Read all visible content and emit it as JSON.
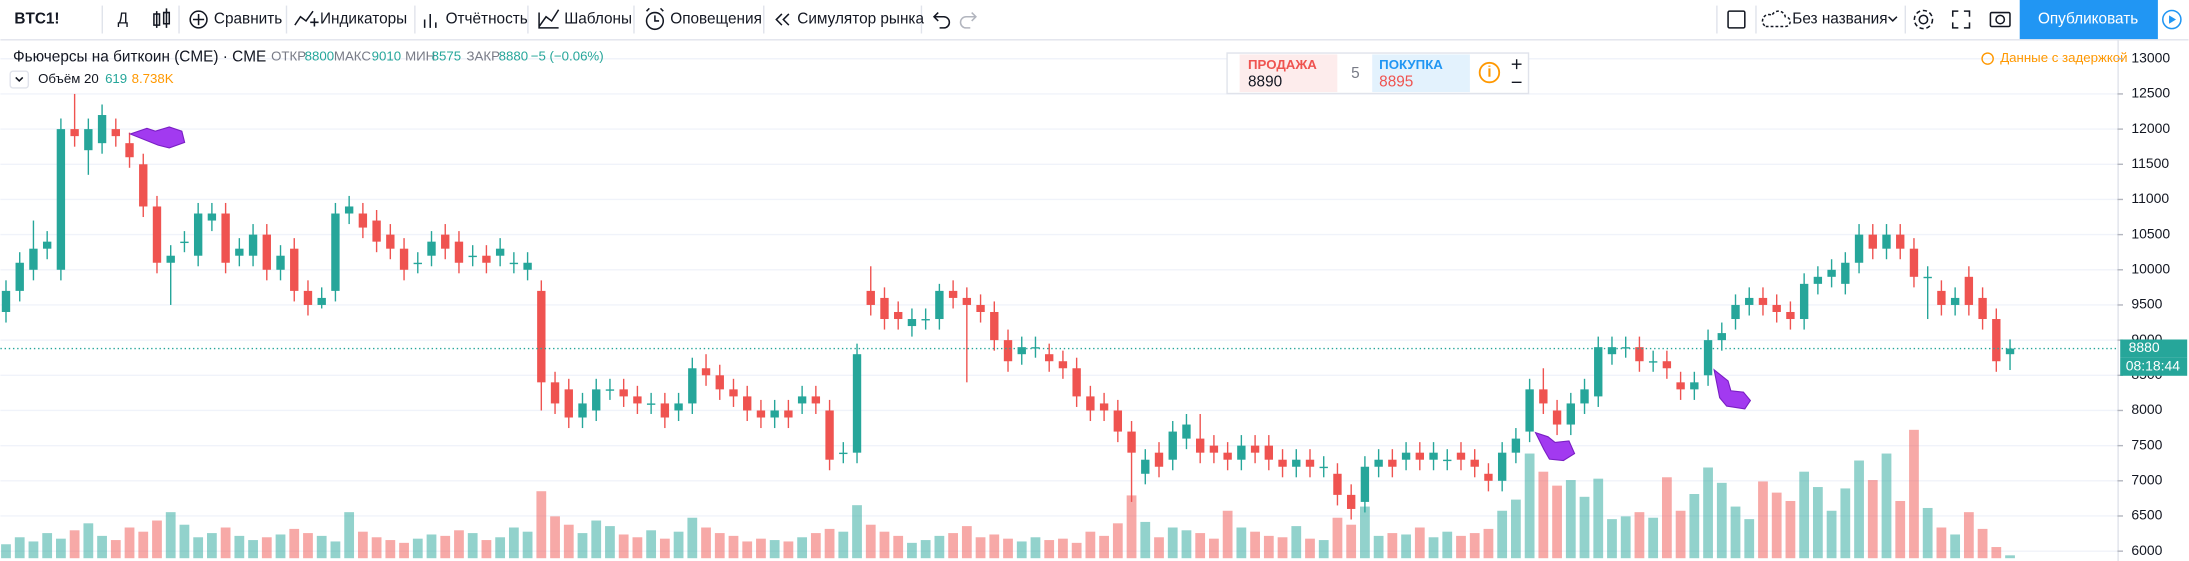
{
  "toolbar": {
    "symbol": "BTC1!",
    "interval": "Д",
    "buttons": [
      "Сравнить",
      "Индикаторы",
      "Отчётность",
      "Шаблоны",
      "Оповещения",
      "Симулятор рынка"
    ],
    "layout_name": "Без названия",
    "publish": "Опубликовать"
  },
  "legend": {
    "title": "Фьючерсы на биткоин (CME) · CME",
    "open_label": "ОТКР",
    "high_label": "МАКС",
    "low_label": "МИН",
    "close_label": "ЗАКР",
    "change": "−5 (−0.06%)",
    "volume_label": "Объём 20",
    "volume_ma": "8.738K",
    "delay_notice": "Данные с задержкой",
    "time_left": "08:18:44"
  },
  "trade_widget": {
    "sell_label": "ПРОДАЖА",
    "sell_price": 8890,
    "spread": 5,
    "buy_label": "ПОКУПКА",
    "buy_price": 8895
  },
  "chart_data": {
    "type": "candlestick",
    "up_color": "#26a69a",
    "down_color": "#ef5350",
    "ylim": [
      5860,
      13260
    ],
    "yticks": [
      6000,
      6500,
      7000,
      7500,
      8000,
      8500,
      9000,
      9500,
      10000,
      10500,
      11000,
      11500,
      12000,
      12500,
      13000
    ],
    "grid": true,
    "vlim": [
      0,
      30000
    ],
    "open": [
      9400,
      9700,
      10000,
      10300,
      10000,
      12000,
      11700,
      11800,
      12000,
      11800,
      11500,
      10900,
      10100,
      10400,
      10200,
      10700,
      10800,
      10200,
      10200,
      10500,
      10000,
      10300,
      9700,
      9500,
      9700,
      10800,
      10800,
      10700,
      10500,
      10300,
      10100,
      10200,
      10500,
      10400,
      10200,
      10200,
      10200,
      10100,
      10000,
      9700,
      8400,
      8300,
      7900,
      8000,
      8300,
      8300,
      8200,
      8100,
      8100,
      8000,
      8100,
      8600,
      8500,
      8300,
      8200,
      8000,
      7900,
      8000,
      8100,
      8200,
      8000,
      7400,
      7400,
      9700,
      9600,
      9400,
      9200,
      9300,
      9300,
      9700,
      9600,
      9500,
      9400,
      9000,
      8800,
      8900,
      8800,
      8700,
      8600,
      8200,
      8100,
      8000,
      7700,
      7100,
      7400,
      7300,
      7600,
      7600,
      7500,
      7400,
      7300,
      7500,
      7500,
      7300,
      7200,
      7300,
      7200,
      7100,
      6800,
      6700,
      7200,
      7300,
      7300,
      7400,
      7300,
      7300,
      7400,
      7300,
      7100,
      7000,
      7400,
      7700,
      8300,
      8000,
      7800,
      8100,
      8200,
      8800,
      8900,
      8900,
      8700,
      8700,
      8400,
      8300,
      8500,
      9000,
      9300,
      9500,
      9600,
      9500,
      9400,
      9300,
      9800,
      9900,
      9800,
      10100,
      10500,
      10300,
      10500,
      10300,
      9900,
      9700,
      9500,
      9900,
      9600,
      9300,
      8800
    ],
    "high": [
      9850,
      10250,
      10700,
      10550,
      12150,
      12500,
      12150,
      12350,
      12150,
      11950,
      11650,
      11050,
      10350,
      10550,
      10950,
      10950,
      10950,
      10450,
      10650,
      10650,
      10350,
      10450,
      9850,
      9750,
      10950,
      11050,
      10950,
      10850,
      10650,
      10450,
      10250,
      10550,
      10650,
      10550,
      10350,
      10350,
      10450,
      10250,
      10250,
      9850,
      8550,
      8450,
      8250,
      8450,
      8450,
      8450,
      8350,
      8250,
      8250,
      8250,
      8750,
      8800,
      8650,
      8450,
      8350,
      8150,
      8150,
      8150,
      8350,
      8350,
      8150,
      7550,
      8950,
      10050,
      9750,
      9550,
      9450,
      9450,
      9800,
      9850,
      9750,
      9650,
      9550,
      9150,
      9050,
      9050,
      8950,
      8850,
      8750,
      8350,
      8250,
      8150,
      7850,
      7450,
      7550,
      7850,
      7950,
      7950,
      7650,
      7550,
      7650,
      7650,
      7650,
      7450,
      7450,
      7450,
      7350,
      7250,
      6950,
      7350,
      7450,
      7450,
      7550,
      7550,
      7550,
      7450,
      7550,
      7450,
      7250,
      7550,
      7750,
      8450,
      8600,
      8150,
      8250,
      8450,
      9050,
      9050,
      9050,
      9050,
      8850,
      8850,
      8550,
      8550,
      9150,
      9250,
      9650,
      9750,
      9750,
      9650,
      9550,
      9950,
      10050,
      10150,
      10250,
      10650,
      10650,
      10650,
      10650,
      10450,
      10050,
      9850,
      9750,
      10050,
      9750,
      9450,
      9010
    ],
    "low": [
      9250,
      9550,
      9850,
      10150,
      9850,
      11750,
      11350,
      11650,
      11750,
      11450,
      10750,
      9950,
      9500,
      10250,
      10050,
      10550,
      9950,
      10050,
      10050,
      9850,
      9850,
      9550,
      9350,
      9450,
      9550,
      10650,
      10450,
      10250,
      10150,
      9850,
      9950,
      10050,
      10150,
      9950,
      10050,
      9950,
      10050,
      9950,
      9850,
      8000,
      7950,
      7750,
      7750,
      7850,
      8150,
      8050,
      7950,
      7950,
      7750,
      7850,
      7950,
      8350,
      8150,
      8050,
      7850,
      7750,
      7750,
      7750,
      7950,
      7950,
      7150,
      7250,
      7250,
      9350,
      9150,
      9150,
      9050,
      9150,
      9150,
      9450,
      8400,
      9250,
      8850,
      8550,
      8650,
      8750,
      8550,
      8450,
      8050,
      7850,
      7850,
      7550,
      6700,
      6950,
      7050,
      7150,
      7450,
      7250,
      7250,
      7150,
      7150,
      7250,
      7150,
      7050,
      7050,
      7050,
      7050,
      6650,
      6450,
      6550,
      7050,
      7050,
      7150,
      7150,
      7150,
      7150,
      7150,
      7050,
      6850,
      6850,
      7250,
      7550,
      7950,
      7650,
      7650,
      7950,
      8050,
      8650,
      8750,
      8550,
      8550,
      8450,
      8150,
      8150,
      8350,
      8850,
      9150,
      9350,
      9350,
      9250,
      9150,
      9150,
      9650,
      9750,
      9650,
      9950,
      10150,
      10150,
      10150,
      9750,
      9300,
      9350,
      9350,
      9350,
      9150,
      8550,
      8575
    ],
    "close": [
      9700,
      10100,
      10300,
      10400,
      12000,
      11900,
      12000,
      12200,
      11900,
      11600,
      10900,
      10100,
      10200,
      10400,
      10800,
      10800,
      10100,
      10300,
      10500,
      10000,
      10200,
      9700,
      9500,
      9600,
      10800,
      10900,
      10600,
      10400,
      10300,
      10000,
      10100,
      10400,
      10300,
      10100,
      10200,
      10100,
      10300,
      10100,
      10100,
      8400,
      8100,
      7900,
      8100,
      8300,
      8300,
      8200,
      8100,
      8100,
      7900,
      8100,
      8600,
      8500,
      8300,
      8200,
      8000,
      7900,
      8000,
      7900,
      8200,
      8100,
      7300,
      7400,
      8800,
      9500,
      9300,
      9300,
      9300,
      9300,
      9700,
      9600,
      9500,
      9400,
      9000,
      8700,
      8900,
      8900,
      8700,
      8600,
      8200,
      8000,
      8000,
      7700,
      7400,
      7300,
      7200,
      7700,
      7800,
      7400,
      7400,
      7300,
      7500,
      7400,
      7300,
      7200,
      7300,
      7200,
      7200,
      6800,
      6600,
      7200,
      7300,
      7200,
      7400,
      7300,
      7400,
      7300,
      7300,
      7200,
      7000,
      7400,
      7600,
      8300,
      8100,
      7800,
      8100,
      8300,
      8900,
      8900,
      8900,
      8700,
      8700,
      8600,
      8300,
      8400,
      9000,
      9100,
      9500,
      9600,
      9500,
      9400,
      9300,
      9800,
      9900,
      10000,
      10100,
      10500,
      10300,
      10500,
      10300,
      9900,
      9900,
      9500,
      9600,
      9500,
      9300,
      8700,
      8880
    ],
    "volume": [
      3000,
      4500,
      3600,
      5400,
      4200,
      6000,
      7500,
      4800,
      3900,
      6600,
      5700,
      8100,
      9900,
      7200,
      4500,
      5400,
      6600,
      4800,
      3900,
      4500,
      5100,
      6300,
      5400,
      4800,
      3600,
      9900,
      5700,
      4500,
      3900,
      3300,
      4200,
      5100,
      4800,
      6000,
      5400,
      3900,
      4500,
      6600,
      5700,
      14400,
      9000,
      7200,
      5400,
      8100,
      6900,
      5100,
      4500,
      6000,
      4200,
      5700,
      8700,
      6600,
      5400,
      4800,
      3600,
      4200,
      3900,
      3600,
      4500,
      5400,
      6300,
      5700,
      11400,
      7200,
      5700,
      4800,
      3300,
      3900,
      4800,
      5400,
      6900,
      4500,
      5100,
      4200,
      3600,
      4500,
      3900,
      4200,
      3300,
      5700,
      4800,
      7500,
      13500,
      7800,
      4500,
      6600,
      6000,
      5400,
      4200,
      10200,
      6600,
      5700,
      4800,
      4500,
      6900,
      4200,
      3900,
      8700,
      7200,
      11100,
      4800,
      5400,
      5100,
      6600,
      4500,
      5700,
      4800,
      5400,
      6300,
      10200,
      12600,
      22500,
      18600,
      15600,
      16800,
      13200,
      17100,
      8400,
      9000,
      9900,
      8700,
      17400,
      10200,
      13800,
      19500,
      16200,
      11100,
      8400,
      16500,
      14100,
      12300,
      18600,
      15300,
      10200,
      15000,
      21000,
      16800,
      22500,
      12300,
      27600,
      10800,
      6600,
      5100,
      9900,
      6300,
      2400,
      619
    ]
  }
}
